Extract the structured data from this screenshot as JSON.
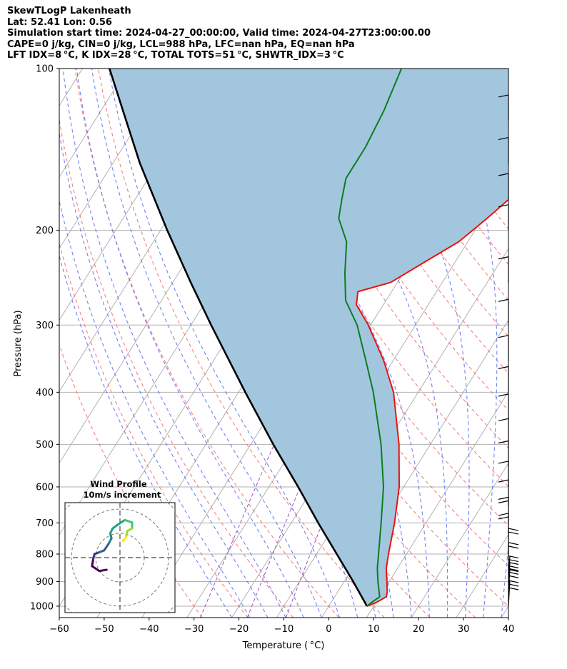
{
  "header": {
    "line1": "SkewTLogP Lakenheath",
    "line2": "Lat: 52.41   Lon: 0.56",
    "line3": "Simulation start time: 2024-04-27_00:00:00, Valid time: 2024-04-27T23:00:00.00",
    "line4": "CAPE=0 j/kg, CIN=0 j/kg, LCL=988 hPa, LFC=nan hPa, EQ=nan hPa",
    "line5": "LFT IDX=8 °C, K IDX=28 °C, TOTAL TOTS=51 °C, SHWTR_IDX=3 °C"
  },
  "axes": {
    "xlabel": "Temperature ( °C)",
    "ylabel": "Pressure (hPa)",
    "xticks": [
      -60,
      -50,
      -40,
      -30,
      -20,
      -10,
      0,
      10,
      20,
      30,
      40
    ],
    "xtick_labels": [
      "−60",
      "−50",
      "−40",
      "−30",
      "−20",
      "−10",
      "0",
      "10",
      "20",
      "30",
      "40"
    ],
    "yticks": [
      1000,
      900,
      800,
      700,
      600,
      500,
      400,
      300,
      200,
      100
    ],
    "ytick_labels": [
      "1000",
      "900",
      "800",
      "700",
      "600",
      "500",
      "400",
      "300",
      "200",
      "100"
    ]
  },
  "hodograph": {
    "title1": "Wind Profile",
    "title2": "10m/s increment",
    "rings_ms": [
      10,
      20,
      30
    ]
  },
  "colors": {
    "temperature": "#e8130f",
    "dewpoint": "#0a7d1e",
    "parcel": "#000000",
    "cape_fill": "#a3c6df",
    "dry_adiabat": "#f26b6b",
    "moist_adiabat": "#5a6cf0",
    "mixing_ratio": "#9b52c2",
    "isotherm": "#aaaaaa"
  },
  "chart_data": {
    "type": "line",
    "x_axis": "temperature_C",
    "y_axis": "pressure_hPa_log",
    "xlim": [
      -60,
      40
    ],
    "ylim": [
      1050,
      100
    ],
    "skew": "isotherms slanted",
    "grid": true,
    "series": [
      {
        "role": "temperature",
        "points": [
          [
            1000,
            8.5
          ],
          [
            985,
            10
          ],
          [
            960,
            11.5
          ],
          [
            940,
            11
          ],
          [
            900,
            9.5
          ],
          [
            850,
            7.5
          ],
          [
            800,
            6
          ],
          [
            700,
            3
          ],
          [
            600,
            -1
          ],
          [
            500,
            -7
          ],
          [
            400,
            -15.5
          ],
          [
            350,
            -22
          ],
          [
            300,
            -30.5
          ],
          [
            275,
            -36
          ],
          [
            260,
            -37.5
          ],
          [
            250,
            -31.5
          ],
          [
            230,
            -27
          ],
          [
            210,
            -22
          ],
          [
            190,
            -19
          ],
          [
            170,
            -16
          ],
          [
            150,
            -14.5
          ],
          [
            130,
            -14
          ],
          [
            115,
            -13
          ],
          [
            100,
            -12
          ]
        ]
      },
      {
        "role": "dewpoint",
        "points": [
          [
            1000,
            8.5
          ],
          [
            985,
            9
          ],
          [
            960,
            10
          ],
          [
            900,
            7.5
          ],
          [
            850,
            5.5
          ],
          [
            800,
            3.8
          ],
          [
            700,
            0
          ],
          [
            600,
            -4.5
          ],
          [
            500,
            -11
          ],
          [
            400,
            -20
          ],
          [
            350,
            -26
          ],
          [
            300,
            -33
          ],
          [
            270,
            -39
          ],
          [
            240,
            -43
          ],
          [
            210,
            -47
          ],
          [
            190,
            -52
          ],
          [
            175,
            -54
          ],
          [
            160,
            -56
          ],
          [
            140,
            -56
          ],
          [
            120,
            -57
          ],
          [
            100,
            -59
          ]
        ]
      },
      {
        "role": "parcel",
        "points": [
          [
            1000,
            8.5
          ],
          [
            900,
            2
          ],
          [
            800,
            -5.5
          ],
          [
            700,
            -14
          ],
          [
            600,
            -23.5
          ],
          [
            500,
            -35
          ],
          [
            400,
            -48.5
          ],
          [
            300,
            -65.5
          ],
          [
            250,
            -76
          ],
          [
            200,
            -88.5
          ],
          [
            150,
            -104
          ],
          [
            125,
            -113
          ],
          [
            100,
            -124
          ]
        ]
      }
    ],
    "wind_barbs_hPa": [
      1000,
      950,
      925,
      900,
      850,
      800,
      750,
      700,
      650,
      600,
      550,
      500,
      450,
      400,
      350,
      300,
      250,
      200,
      175,
      150,
      125
    ],
    "hodograph_colormap": "viridis"
  }
}
